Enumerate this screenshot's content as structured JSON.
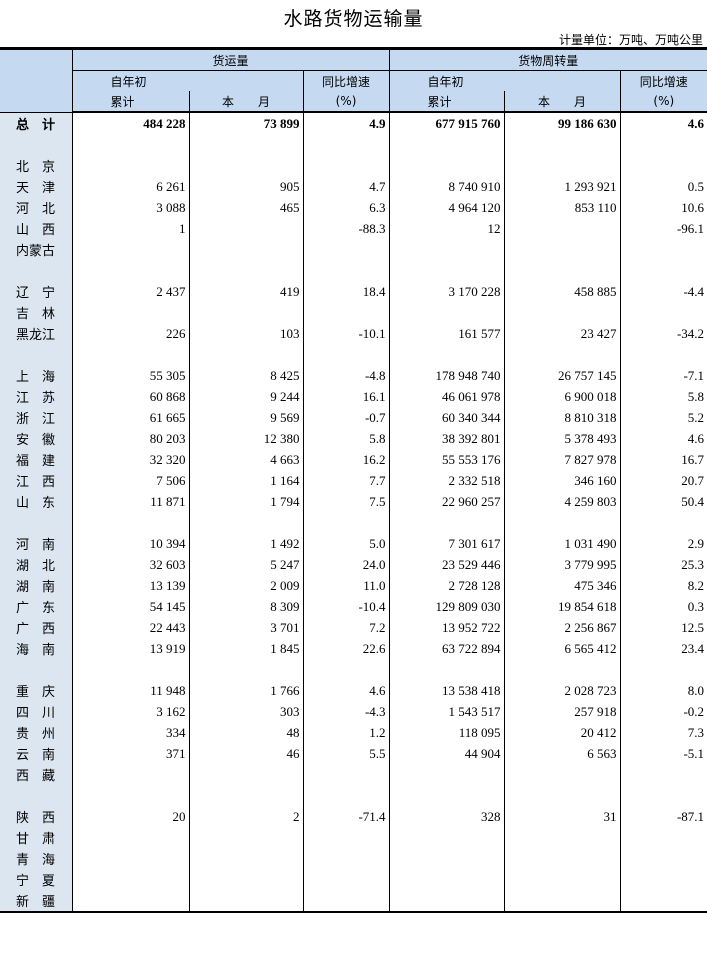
{
  "title": "水路货物运输量",
  "unit": "计量单位：万吨、万吨公里",
  "header": {
    "freight": "货运量",
    "turnover": "货物周转量",
    "ytd_top": "自年初",
    "ytd_bottom": "累计",
    "month": "本　　月",
    "yoy_top": "同比增速",
    "yoy_bottom": "(%)"
  },
  "rows": [
    {
      "name": "总　计",
      "v": [
        "484 228",
        "73 899",
        "4.9",
        "677 915 760",
        "99 186 630",
        "4.6"
      ],
      "total": true
    },
    null,
    {
      "name": "北　京",
      "v": [
        "",
        "",
        "",
        "",
        "",
        ""
      ]
    },
    {
      "name": "天　津",
      "v": [
        "6 261",
        "905",
        "4.7",
        "8 740 910",
        "1 293 921",
        "0.5"
      ]
    },
    {
      "name": "河　北",
      "v": [
        "3 088",
        "465",
        "6.3",
        "4 964 120",
        "853 110",
        "10.6"
      ]
    },
    {
      "name": "山　西",
      "v": [
        "1",
        "",
        "-88.3",
        "12",
        "",
        "-96.1"
      ]
    },
    {
      "name": "内蒙古",
      "v": [
        "",
        "",
        "",
        "",
        "",
        ""
      ]
    },
    null,
    {
      "name": "辽　宁",
      "v": [
        "2 437",
        "419",
        "18.4",
        "3 170 228",
        "458 885",
        "-4.4"
      ]
    },
    {
      "name": "吉　林",
      "v": [
        "",
        "",
        "",
        "",
        "",
        ""
      ]
    },
    {
      "name": "黑龙江",
      "v": [
        "226",
        "103",
        "-10.1",
        "161 577",
        "23 427",
        "-34.2"
      ]
    },
    null,
    {
      "name": "上　海",
      "v": [
        "55 305",
        "8 425",
        "-4.8",
        "178 948 740",
        "26 757 145",
        "-7.1"
      ]
    },
    {
      "name": "江　苏",
      "v": [
        "60 868",
        "9 244",
        "16.1",
        "46 061 978",
        "6 900 018",
        "5.8"
      ]
    },
    {
      "name": "浙　江",
      "v": [
        "61 665",
        "9 569",
        "-0.7",
        "60 340 344",
        "8 810 318",
        "5.2"
      ]
    },
    {
      "name": "安　徽",
      "v": [
        "80 203",
        "12 380",
        "5.8",
        "38 392 801",
        "5 378 493",
        "4.6"
      ]
    },
    {
      "name": "福　建",
      "v": [
        "32 320",
        "4 663",
        "16.2",
        "55 553 176",
        "7 827 978",
        "16.7"
      ]
    },
    {
      "name": "江　西",
      "v": [
        "7 506",
        "1 164",
        "7.7",
        "2 332 518",
        "346 160",
        "20.7"
      ]
    },
    {
      "name": "山　东",
      "v": [
        "11 871",
        "1 794",
        "7.5",
        "22 960 257",
        "4 259 803",
        "50.4"
      ]
    },
    null,
    {
      "name": "河　南",
      "v": [
        "10 394",
        "1 492",
        "5.0",
        "7 301 617",
        "1 031 490",
        "2.9"
      ]
    },
    {
      "name": "湖　北",
      "v": [
        "32 603",
        "5 247",
        "24.0",
        "23 529 446",
        "3 779 995",
        "25.3"
      ]
    },
    {
      "name": "湖　南",
      "v": [
        "13 139",
        "2 009",
        "11.0",
        "2 728 128",
        "475 346",
        "8.2"
      ]
    },
    {
      "name": "广　东",
      "v": [
        "54 145",
        "8 309",
        "-10.4",
        "129 809 030",
        "19 854 618",
        "0.3"
      ]
    },
    {
      "name": "广　西",
      "v": [
        "22 443",
        "3 701",
        "7.2",
        "13 952 722",
        "2 256 867",
        "12.5"
      ]
    },
    {
      "name": "海　南",
      "v": [
        "13 919",
        "1 845",
        "22.6",
        "63 722 894",
        "6 565 412",
        "23.4"
      ]
    },
    null,
    {
      "name": "重　庆",
      "v": [
        "11 948",
        "1 766",
        "4.6",
        "13 538 418",
        "2 028 723",
        "8.0"
      ]
    },
    {
      "name": "四　川",
      "v": [
        "3 162",
        "303",
        "-4.3",
        "1 543 517",
        "257 918",
        "-0.2"
      ]
    },
    {
      "name": "贵　州",
      "v": [
        "334",
        "48",
        "1.2",
        "118 095",
        "20 412",
        "7.3"
      ]
    },
    {
      "name": "云　南",
      "v": [
        "371",
        "46",
        "5.5",
        "44 904",
        "6 563",
        "-5.1"
      ]
    },
    {
      "name": "西　藏",
      "v": [
        "",
        "",
        "",
        "",
        "",
        ""
      ]
    },
    null,
    {
      "name": "陕　西",
      "v": [
        "20",
        "2",
        "-71.4",
        "328",
        "31",
        "-87.1"
      ]
    },
    {
      "name": "甘　肃",
      "v": [
        "",
        "",
        "",
        "",
        "",
        ""
      ]
    },
    {
      "name": "青　海",
      "v": [
        "",
        "",
        "",
        "",
        "",
        ""
      ]
    },
    {
      "name": "宁　夏",
      "v": [
        "",
        "",
        "",
        "",
        "",
        ""
      ]
    },
    {
      "name": "新　疆",
      "v": [
        "",
        "",
        "",
        "",
        "",
        ""
      ]
    }
  ]
}
